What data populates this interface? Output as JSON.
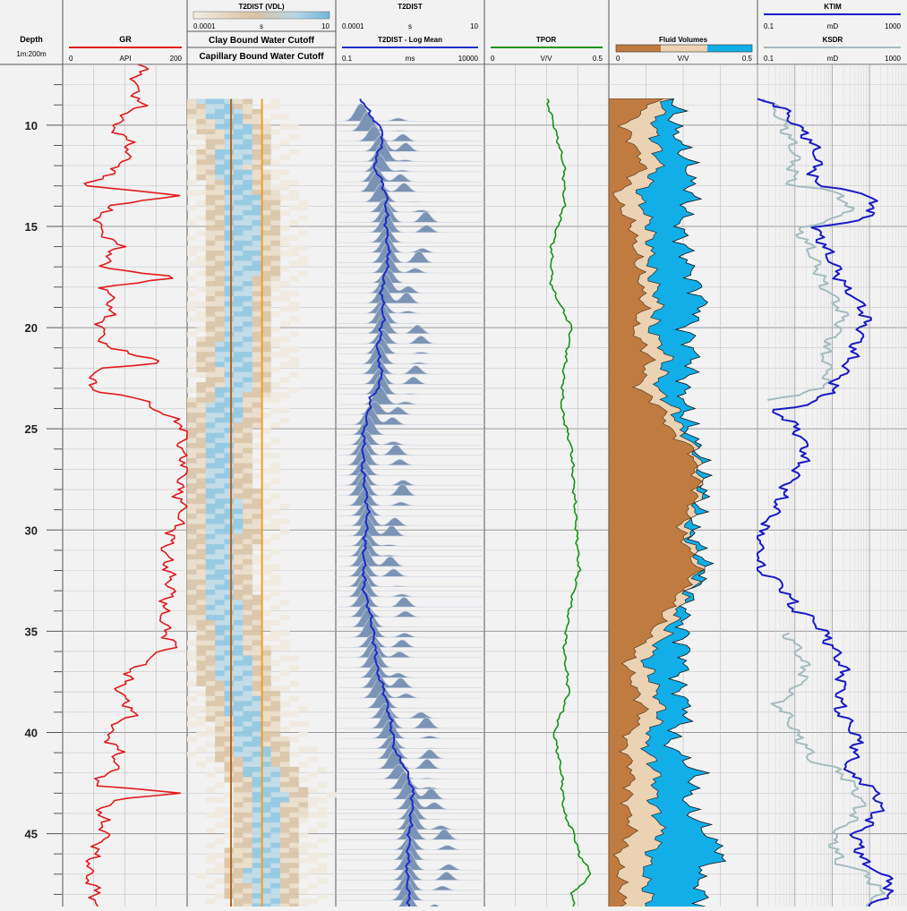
{
  "depth_track": {
    "title": "Depth",
    "scale_label": "1m:200m",
    "ticks": [
      "10",
      "15",
      "20",
      "25",
      "30",
      "35",
      "40",
      "45"
    ]
  },
  "tracks": {
    "gr": {
      "title": "GR",
      "unit": "API",
      "min_label": "0",
      "max_label": "200",
      "color": "#e31a1c"
    },
    "t2dist_vdl": {
      "title": "T2DIST (VDL)",
      "unit": "s",
      "min_label": "0.0001",
      "max_label": "10",
      "cutoff1": "Clay Bound Water Cutoff",
      "cutoff2": "Capillary Bound Water Cutoff"
    },
    "t2dist": {
      "title": "T2DIST",
      "unit": "s",
      "min_label": "0.0001",
      "max_label": "10",
      "sub_title": "T2DIST - Log Mean",
      "sub_unit": "ms",
      "sub_min_label": "0.1",
      "sub_max_label": "10000",
      "fill_color": "#7b93b4",
      "line_color": "#1e2bc8"
    },
    "tpor": {
      "title": "TPOR",
      "unit": "V/V",
      "min_label": "0",
      "max_label": "0.5",
      "color": "#179317"
    },
    "fluid_volumes": {
      "title": "Fluid Volumes",
      "unit": "V/V",
      "min_label": "0",
      "max_label": "0.5",
      "clay_color": "#c07b40",
      "cap_color": "#ead2b2",
      "free_color": "#12aee8"
    },
    "perm": {
      "title1": "KTIM",
      "unit1": "mD",
      "min_label1": "0.1",
      "max_label1": "1000",
      "color1": "#1a1ac8",
      "title2": "KSDR",
      "unit2": "mD",
      "min_label2": "0.1",
      "max_label2": "1000",
      "color2": "#a3bcc0"
    }
  },
  "chart_data": {
    "type": "line",
    "depth_unit": "m",
    "depth_range": [
      7.0,
      48.6
    ],
    "depth_axis": {
      "ticks": [
        10,
        15,
        20,
        25,
        30,
        35,
        40,
        45
      ],
      "reversed": true
    },
    "series": [
      {
        "name": "GR",
        "unit": "API",
        "scale": [
          0,
          200
        ],
        "depth": [
          7.0,
          8.0,
          9.0,
          10.0,
          11.0,
          12.0,
          13.0,
          13.5,
          14.0,
          15.0,
          16.0,
          17.0,
          17.5,
          18.0,
          19.0,
          20.0,
          21.0,
          21.7,
          22.0,
          23.0,
          23.5,
          24.0,
          25.0,
          26.0,
          27.0,
          28.0,
          29.0,
          30.0,
          31.0,
          32.0,
          33.0,
          34.0,
          35.0,
          35.7,
          36.5,
          37.0,
          38.0,
          39.0,
          40.0,
          41.0,
          42.0,
          42.6,
          43.0,
          43.3,
          44.0,
          45.0,
          46.0,
          47.0,
          48.0,
          48.6
        ],
        "values": [
          130,
          115,
          125,
          80,
          110,
          95,
          40,
          190,
          70,
          55,
          90,
          60,
          180,
          70,
          80,
          60,
          70,
          170,
          60,
          40,
          120,
          150,
          200,
          190,
          200,
          185,
          195,
          180,
          165,
          170,
          175,
          160,
          165,
          180,
          130,
          110,
          90,
          115,
          70,
          90,
          80,
          40,
          200,
          80,
          60,
          70,
          50,
          40,
          55,
          50
        ]
      },
      {
        "name": "TPOR",
        "unit": "V/V",
        "scale": [
          0,
          0.5
        ],
        "depth": [
          8.7,
          10.0,
          12.0,
          14.0,
          16.0,
          18.0,
          20.0,
          22.0,
          24.0,
          26.0,
          28.0,
          30.0,
          32.0,
          34.0,
          36.0,
          38.0,
          40.0,
          42.0,
          44.0,
          45.0,
          46.0,
          47.0,
          48.0,
          48.6
        ],
        "values": [
          0.25,
          0.28,
          0.32,
          0.32,
          0.27,
          0.27,
          0.35,
          0.32,
          0.31,
          0.35,
          0.36,
          0.37,
          0.38,
          0.34,
          0.32,
          0.34,
          0.28,
          0.31,
          0.32,
          0.36,
          0.38,
          0.43,
          0.35,
          0.36
        ]
      },
      {
        "name": "T2DIST - Log Mean",
        "unit": "ms",
        "scale": [
          0.1,
          10000
        ],
        "log": true,
        "depth": [
          8.7,
          9.5,
          10.5,
          12.0,
          13.5,
          15.0,
          16.5,
          18.0,
          19.5,
          21.0,
          22.5,
          23.5,
          25.0,
          27.0,
          29.0,
          31.0,
          33.0,
          35.0,
          37.0,
          39.0,
          41.0,
          43.0,
          45.0,
          47.0,
          48.6
        ],
        "values": [
          0.7,
          1.4,
          4,
          1.8,
          5,
          5,
          6,
          3.5,
          4,
          2.5,
          3.5,
          1.5,
          0.9,
          0.8,
          1.2,
          0.9,
          0.9,
          1.8,
          2.5,
          6,
          10,
          40,
          30,
          25,
          30
        ]
      },
      {
        "name": "Fluid Volumes - Clay Bound Water",
        "unit": "V/V",
        "scale": [
          0,
          0.5
        ],
        "depth": [
          8.7,
          10.0,
          12.0,
          13.5,
          15.0,
          17.0,
          19.0,
          20.0,
          21.5,
          23.0,
          24.0,
          25.0,
          26.0,
          28.0,
          30.0,
          32.0,
          33.5,
          35.0,
          36.5,
          37.5,
          39.0,
          40.5,
          42.0,
          43.5,
          45.0,
          46.0,
          47.0,
          48.6
        ],
        "values": [
          0.17,
          0.05,
          0.12,
          0.02,
          0.08,
          0.1,
          0.12,
          0.08,
          0.14,
          0.1,
          0.18,
          0.2,
          0.28,
          0.3,
          0.24,
          0.3,
          0.22,
          0.15,
          0.06,
          0.08,
          0.12,
          0.05,
          0.08,
          0.06,
          0.08,
          0.03,
          0.04,
          0.05
        ]
      },
      {
        "name": "Fluid Volumes - Capillary Bound Water",
        "unit": "V/V",
        "scale": [
          0,
          0.5
        ],
        "depth": [
          8.7,
          10.0,
          12.0,
          13.5,
          15.0,
          17.0,
          19.0,
          20.0,
          21.5,
          23.0,
          24.0,
          25.0,
          26.0,
          28.0,
          30.0,
          32.0,
          33.5,
          35.0,
          36.5,
          37.5,
          39.0,
          40.5,
          42.0,
          43.5,
          45.0,
          46.0,
          47.0,
          48.6
        ],
        "values": [
          0.2,
          0.15,
          0.17,
          0.1,
          0.14,
          0.14,
          0.17,
          0.14,
          0.2,
          0.16,
          0.22,
          0.24,
          0.29,
          0.31,
          0.26,
          0.31,
          0.25,
          0.2,
          0.12,
          0.15,
          0.18,
          0.12,
          0.16,
          0.15,
          0.18,
          0.14,
          0.12,
          0.14
        ]
      },
      {
        "name": "Fluid Volumes - Total",
        "unit": "V/V",
        "scale": [
          0,
          0.5
        ],
        "depth": [
          8.7,
          10.0,
          12.0,
          13.5,
          15.0,
          17.0,
          19.0,
          20.0,
          21.5,
          23.0,
          24.0,
          25.0,
          26.0,
          28.0,
          30.0,
          32.0,
          33.5,
          35.0,
          36.5,
          37.5,
          39.0,
          40.5,
          42.0,
          43.5,
          45.0,
          46.0,
          47.0,
          48.6
        ],
        "values": [
          0.23,
          0.22,
          0.27,
          0.28,
          0.24,
          0.27,
          0.32,
          0.26,
          0.29,
          0.25,
          0.26,
          0.27,
          0.3,
          0.32,
          0.28,
          0.33,
          0.26,
          0.25,
          0.26,
          0.23,
          0.27,
          0.2,
          0.3,
          0.26,
          0.33,
          0.39,
          0.3,
          0.32
        ]
      },
      {
        "name": "KTIM",
        "unit": "mD",
        "scale": [
          0.1,
          1000
        ],
        "log": true,
        "depth": [
          8.7,
          10.0,
          11.5,
          13.0,
          14.0,
          15.0,
          16.5,
          18.0,
          19.5,
          21.0,
          22.5,
          24.0,
          26.0,
          28.0,
          30.0,
          32.0,
          34.0,
          35.5,
          37.0,
          39.0,
          40.5,
          42.0,
          43.5,
          45.0,
          46.5,
          47.6,
          48.6
        ],
        "values": [
          0.12,
          1,
          4,
          3,
          150,
          3,
          8,
          20,
          80,
          40,
          15,
          0.15,
          2,
          0.5,
          0.12,
          0.1,
          1,
          8,
          20,
          15,
          50,
          20,
          200,
          40,
          70,
          400,
          100
        ]
      },
      {
        "name": "KSDR",
        "unit": "mD",
        "scale": [
          0.1,
          1000
        ],
        "log": true,
        "depth": [
          8.7,
          10.0,
          11.5,
          13.0,
          14.0,
          15.0,
          16.5,
          18.0,
          19.5,
          21.0,
          22.5,
          23.5,
          35.0,
          37.0,
          38.5,
          40.0,
          41.5,
          43.5,
          45.0,
          46.5,
          48.0,
          48.6
        ],
        "values": [
          0.15,
          0.5,
          1,
          0.8,
          30,
          1,
          3,
          6,
          20,
          6,
          8,
          0.15,
          0.5,
          2,
          0.3,
          1,
          3,
          60,
          10,
          15,
          200,
          60
        ]
      }
    ],
    "t2_distribution": {
      "bins_unit": "s",
      "bin_range": [
        0.0001,
        10
      ],
      "log": true,
      "reading_step_m": 0.5
    },
    "cutoffs": {
      "clay_bound_s": 0.003,
      "capillary_bound_s": 0.033
    },
    "grid": true
  }
}
